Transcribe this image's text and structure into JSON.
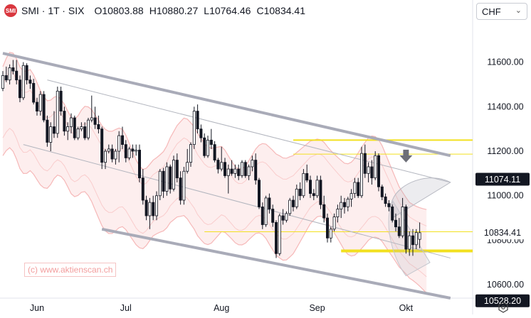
{
  "header": {
    "title": "SMI · 1T · SIX",
    "open_label": "O",
    "open": "10803.88",
    "high_label": "H",
    "high": "10880.27",
    "low_label": "L",
    "low": "10764.46",
    "close_label": "C",
    "close": "10834.41"
  },
  "currency": {
    "selected": "CHF"
  },
  "watermark": "(c) www.aktienscan.ch",
  "colors": {
    "up": "#ffffff",
    "down": "#131722",
    "band": "#f8d0d0",
    "channel": "#a9abb8",
    "support": "#f2e01f",
    "label_bg": "#131722"
  },
  "icons": {
    "logo": "smi-logo-icon",
    "dropdown": "chevron-down-icon",
    "settings": "settings-hexagon-icon",
    "arrow": "down-arrow-icon"
  },
  "chart_data": {
    "type": "candlestick",
    "title": "SMI · 1T · SIX",
    "ylim": [
      10540,
      11790
    ],
    "y_ticks": [
      {
        "value": 10600,
        "label": "10600.00"
      },
      {
        "value": 10800,
        "label": "10800.00"
      },
      {
        "value": 11000,
        "label": "11000.00"
      },
      {
        "value": 11200,
        "label": "11200.00"
      },
      {
        "value": 11400,
        "label": "11400.00"
      },
      {
        "value": 11600,
        "label": "11600.00"
      }
    ],
    "x_ticks": [
      "Jun",
      "Jul",
      "Aug",
      "Sep",
      "Okt"
    ],
    "x_tick_index": [
      10,
      36,
      64,
      92,
      118
    ],
    "price_labels": [
      {
        "value": 11074.11,
        "label": "11074.11",
        "style": "dark"
      },
      {
        "value": 10834.41,
        "label": "10834.41",
        "style": "light"
      },
      {
        "value": 10528.2,
        "label": "10528.20",
        "style": "dark"
      }
    ],
    "candles": [
      [
        11482,
        11560,
        11470,
        11540
      ],
      [
        11540,
        11580,
        11510,
        11520
      ],
      [
        11520,
        11590,
        11500,
        11575
      ],
      [
        11575,
        11610,
        11545,
        11560
      ],
      [
        11560,
        11610,
        11500,
        11520
      ],
      [
        11520,
        11540,
        11420,
        11440
      ],
      [
        11440,
        11600,
        11430,
        11585
      ],
      [
        11585,
        11595,
        11500,
        11520
      ],
      [
        11520,
        11540,
        11480,
        11505
      ],
      [
        11505,
        11525,
        11410,
        11420
      ],
      [
        11420,
        11440,
        11360,
        11380
      ],
      [
        11380,
        11470,
        11360,
        11455
      ],
      [
        11455,
        11470,
        11330,
        11340
      ],
      [
        11340,
        11360,
        11220,
        11240
      ],
      [
        11240,
        11330,
        11200,
        11310
      ],
      [
        11310,
        11380,
        11260,
        11280
      ],
      [
        11280,
        11490,
        11260,
        11470
      ],
      [
        11470,
        11490,
        11360,
        11380
      ],
      [
        11380,
        11400,
        11270,
        11290
      ],
      [
        11290,
        11330,
        11250,
        11310
      ],
      [
        11310,
        11370,
        11280,
        11350
      ],
      [
        11350,
        11360,
        11250,
        11260
      ],
      [
        11260,
        11310,
        11250,
        11300
      ],
      [
        11300,
        11330,
        11290,
        11310
      ],
      [
        11310,
        11330,
        11250,
        11260
      ],
      [
        11260,
        11350,
        11250,
        11340
      ],
      [
        11340,
        11450,
        11330,
        11350
      ],
      [
        11350,
        11400,
        11300,
        11320
      ],
      [
        11320,
        11360,
        11280,
        11300
      ],
      [
        11300,
        11310,
        11120,
        11150
      ],
      [
        11150,
        11210,
        11120,
        11200
      ],
      [
        11200,
        11230,
        11190,
        11210
      ],
      [
        11210,
        11230,
        11150,
        11165
      ],
      [
        11165,
        11210,
        11140,
        11200
      ],
      [
        11200,
        11290,
        11150,
        11270
      ],
      [
        11270,
        11310,
        11210,
        11230
      ],
      [
        11230,
        11250,
        11150,
        11170
      ],
      [
        11170,
        11220,
        11160,
        11210
      ],
      [
        11210,
        11230,
        11170,
        11200
      ],
      [
        11200,
        11230,
        11180,
        11205
      ],
      [
        11205,
        11230,
        11060,
        11080
      ],
      [
        11080,
        11120,
        10960,
        10980
      ],
      [
        10980,
        11000,
        10890,
        10910
      ],
      [
        10910,
        10990,
        10850,
        10970
      ],
      [
        10970,
        11000,
        10890,
        10910
      ],
      [
        10910,
        11020,
        10890,
        11000
      ],
      [
        11000,
        11120,
        10980,
        11110
      ],
      [
        11110,
        11125,
        10990,
        11020
      ],
      [
        11020,
        11150,
        11000,
        11130
      ],
      [
        11130,
        11140,
        11010,
        11030
      ],
      [
        11030,
        11180,
        11020,
        11160
      ],
      [
        11160,
        11190,
        11060,
        11080
      ],
      [
        11080,
        11110,
        10960,
        10980
      ],
      [
        10980,
        11130,
        10960,
        11110
      ],
      [
        11110,
        11210,
        11100,
        11150
      ],
      [
        11150,
        11240,
        11130,
        11230
      ],
      [
        11230,
        11400,
        11210,
        11380
      ],
      [
        11380,
        11410,
        11280,
        11300
      ],
      [
        11300,
        11320,
        11240,
        11260
      ],
      [
        11260,
        11280,
        11170,
        11180
      ],
      [
        11180,
        11270,
        11170,
        11250
      ],
      [
        11250,
        11300,
        11210,
        11230
      ],
      [
        11230,
        11245,
        11150,
        11160
      ],
      [
        11160,
        11170,
        11100,
        11120
      ],
      [
        11120,
        11220,
        11110,
        11150
      ],
      [
        11150,
        11170,
        11080,
        11090
      ],
      [
        11090,
        11140,
        11010,
        11120
      ],
      [
        11120,
        11160,
        11090,
        11100
      ],
      [
        11100,
        11140,
        11080,
        11120
      ],
      [
        11120,
        11140,
        11070,
        11090
      ],
      [
        11090,
        11160,
        11080,
        11150
      ],
      [
        11150,
        11160,
        11080,
        11090
      ],
      [
        11090,
        11140,
        11070,
        11130
      ],
      [
        11130,
        11180,
        11110,
        11160
      ],
      [
        11160,
        11190,
        11050,
        11070
      ],
      [
        11070,
        11080,
        10940,
        10950
      ],
      [
        10950,
        10970,
        10850,
        10870
      ],
      [
        10870,
        11000,
        10860,
        10990
      ],
      [
        10990,
        11010,
        10920,
        10940
      ],
      [
        10940,
        10960,
        10860,
        10880
      ],
      [
        10880,
        10890,
        10720,
        10740
      ],
      [
        10740,
        10920,
        10730,
        10910
      ],
      [
        10910,
        10940,
        10870,
        10890
      ],
      [
        10890,
        10930,
        10880,
        10920
      ],
      [
        10920,
        10990,
        10910,
        10980
      ],
      [
        10980,
        11000,
        10930,
        10950
      ],
      [
        10950,
        11050,
        10940,
        11030
      ],
      [
        11030,
        11060,
        10980,
        11000
      ],
      [
        11000,
        11120,
        10990,
        11100
      ],
      [
        11100,
        11140,
        11060,
        11070
      ],
      [
        11070,
        11090,
        10990,
        11010
      ],
      [
        11010,
        11030,
        10980,
        11000
      ],
      [
        11000,
        11090,
        10990,
        11070
      ],
      [
        11070,
        11090,
        10940,
        10960
      ],
      [
        10960,
        11000,
        10880,
        10900
      ],
      [
        10900,
        10920,
        10790,
        10810
      ],
      [
        10810,
        10860,
        10790,
        10850
      ],
      [
        10850,
        10920,
        10840,
        10905
      ],
      [
        10905,
        10960,
        10880,
        10940
      ],
      [
        10940,
        11000,
        10900,
        10970
      ],
      [
        10970,
        10990,
        10920,
        10950
      ],
      [
        10950,
        10995,
        10930,
        10985
      ],
      [
        10985,
        11030,
        10950,
        11010
      ],
      [
        11010,
        11080,
        10990,
        11060
      ],
      [
        11060,
        11080,
        10990,
        11000
      ],
      [
        11000,
        11220,
        10990,
        11190
      ],
      [
        11190,
        11230,
        11080,
        11100
      ],
      [
        11100,
        11150,
        11060,
        11130
      ],
      [
        11130,
        11160,
        11050,
        11080
      ],
      [
        11080,
        11200,
        11070,
        11180
      ],
      [
        11180,
        11190,
        11020,
        11040
      ],
      [
        11040,
        11050,
        10980,
        10995
      ],
      [
        10995,
        11010,
        10950,
        10965
      ],
      [
        10965,
        10980,
        10930,
        10950
      ],
      [
        10950,
        10960,
        10880,
        10890
      ],
      [
        10890,
        10920,
        10840,
        10860
      ],
      [
        10860,
        10900,
        10810,
        10820
      ],
      [
        10820,
        10990,
        10810,
        10950
      ],
      [
        10950,
        10960,
        10740,
        10760
      ],
      [
        10760,
        10840,
        10730,
        10820
      ],
      [
        10820,
        10850,
        10730,
        10780
      ],
      [
        10780,
        10850,
        10760,
        10835
      ],
      [
        10804,
        10880,
        10764,
        10834
      ]
    ],
    "channel_lines": [
      {
        "style": "thick",
        "from": [
          0,
          11640
        ],
        "to": [
          131,
          11180
        ]
      },
      {
        "style": "thick",
        "from": [
          29,
          10850
        ],
        "to": [
          131,
          10540
        ]
      },
      {
        "style": "thin",
        "from": [
          13,
          11520
        ],
        "to": [
          131,
          11060
        ]
      },
      {
        "style": "thin",
        "from": [
          6,
          11230
        ],
        "to": [
          131,
          10720
        ]
      }
    ],
    "horizontal_levels": [
      {
        "value": 11250,
        "from": 85,
        "style": "medium"
      },
      {
        "value": 11187,
        "from": 85,
        "style": "thin"
      },
      {
        "value": 10838,
        "from": 59,
        "style": "thin"
      },
      {
        "value": 10752,
        "from": 99,
        "style": "thick"
      }
    ],
    "band_mid": [
      11380,
      11410,
      11430,
      11420,
      11390,
      11350,
      11330,
      11330,
      11340,
      11320,
      11290,
      11260,
      11240,
      11230,
      11240,
      11260,
      11270,
      11260,
      11240,
      11210,
      11180,
      11170,
      11180,
      11200,
      11210,
      11200,
      11180,
      11150,
      11120,
      11090,
      11070,
      11060,
      11060,
      11070,
      11080,
      11080,
      11060,
      11030,
      11000,
      10970,
      10950,
      10940,
      10950,
      10970,
      10990,
      11000,
      11010,
      11020,
      11040,
      11070,
      11090,
      11110,
      11120,
      11130,
      11120,
      11100,
      11080,
      11050,
      11030,
      11010,
      11000,
      11000,
      11010,
      11020,
      11030,
      11020,
      11000,
      10980,
      10960,
      10950,
      10950,
      10960,
      10980,
      11000,
      11020,
      11030,
      11030,
      11020,
      11000,
      10980,
      10960,
      10950,
      10940,
      10940,
      10950,
      10960,
      10980,
      11000,
      11020,
      11040,
      11060,
      11070,
      11080,
      11080,
      11070,
      11050,
      11030,
      11010,
      10990,
      10970,
      10950,
      10940,
      10940,
      10950,
      10970,
      10990,
      11010,
      11030,
      11040,
      11040,
      11030,
      11010,
      10980,
      10950,
      10920,
      10890,
      10860,
      10840,
      10820,
      10800,
      10790,
      10780,
      10770,
      10760,
      10750
    ]
  }
}
